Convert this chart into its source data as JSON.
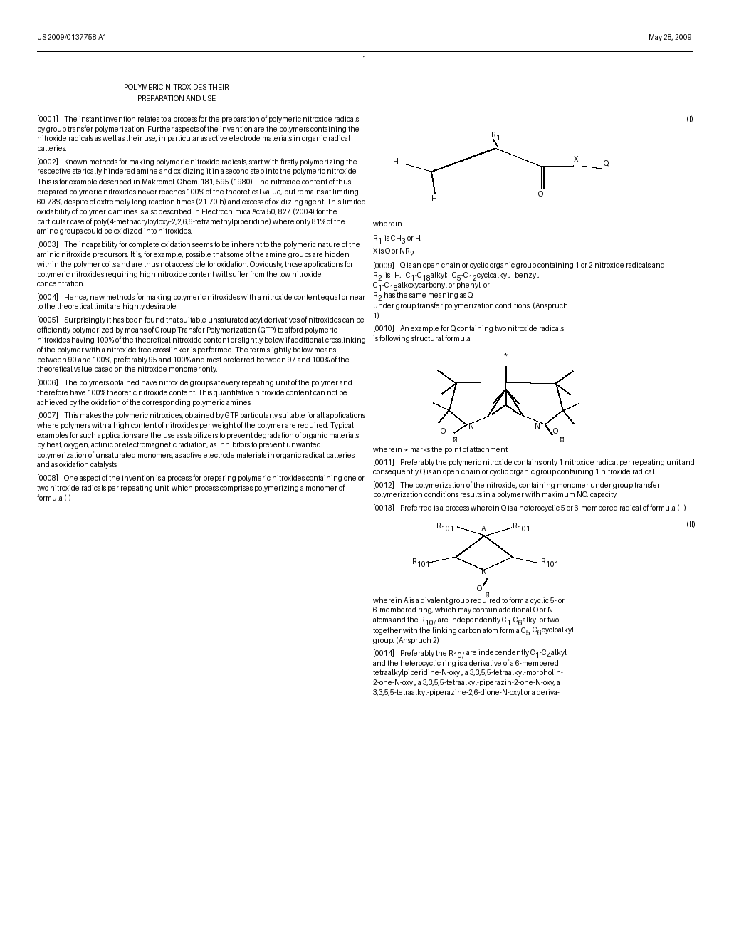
{
  "bg": "#ffffff",
  "header_left": "US 2009/0137758 A1",
  "header_right": "May 28, 2009",
  "page_number": "1",
  "title1": "POLYMERIC NITROXIDES THEIR",
  "title2": "PREPARATION AND USE",
  "formula_I": "(I)",
  "formula_II": "(II)",
  "left_paragraphs": [
    {
      "tag": "[0001]",
      "text": "The instant invention relates to a process for the preparation of polymeric nitroxide radicals by group transfer polymerization. Further aspects of the invention are the polymers containing the nitroxide radicals as well as their use, in particular as active electrode materials in organic radical batteries."
    },
    {
      "tag": "[0002]",
      "text": "Known methods for making polymeric nitroxide radicals, start with firstly polymerizing the respective sterically hindered amine and oxidizing it in a second step into the polymeric nitroxide. This is for example described in Makromol. Chem. 181, 595 (1980). The nitroxide content of thus prepared polymeric nitroxides never reaches 100% of the theoretical value, but remains at limiting 60-73%, despite of extremely long reaction times (21-70 h) and excess of oxidizing agent. This limited oxidability of polymeric amines is also described in Electrochimica Acta 50, 827 (2004) for the particular case of poly(4-methacryloyloxy-2,2,6,6-tetramethylpiperidine) where only 81% of the amine groups could be oxidized into nitroxides."
    },
    {
      "tag": "[0003]",
      "text": "The incapability for complete oxidation seems to be inherent to the polymeric nature of the aminic nitroxide precursors. It is, for example, possible that some of the amine groups are hidden within the polymer coils and are thus not accessible for oxidation. Obviously, those applications for polymeric nitroxides requiring high nitroxide content will suffer from the low nitroxide concentration."
    },
    {
      "tag": "[0004]",
      "text": "Hence, new methods for making polymeric nitroxides with a nitroxide content equal or near to the theoretical limit are highly desirable."
    },
    {
      "tag": "[0005]",
      "text": "Surprisingly it has been found that suitable unsaturated acyl derivatives of nitroxides can be efficiently polymerized by means of Group Transfer Polymerization (GTP) to afford polymeric nitroxides having 100% of the theoretical nitroxide content or slightly below if additional crosslinking of the polymer with a nitroxide free crosslinker is performed. The term slightly below means between 90 and 100%, preferably 95 and 100% and most preferred between 97 and 100% of the theoretical value based on the nitroxide monomer only."
    },
    {
      "tag": "[0006]",
      "text": "The polymers obtained have nitroxide groups at every repeating unit of the polymer and therefore have 100% theoretic nitroxide content. This quantitative nitroxide content can not be achieved by the oxidation of the corresponding polymeric amines."
    },
    {
      "tag": "[0007]",
      "text": "This makes the polymeric nitroxides, obtained by GTP particularly suitable for all applications where polymers with a high content of nitroxides per weight of the polymer are required. Typical examples for such applications are the use as stabilizers to prevent degradation of organic materials by heat, oxygen, actinic or electromagnetic radiation, as inhibitors to prevent unwanted polymerization of unsaturated monomers, as active electrode materials in organic radical batteries and as oxidation catalysts."
    },
    {
      "tag": "[0008]",
      "text": "One aspect of the invention is a process for preparing polymeric nitroxides containing one or two nitroxide radicals per repeating unit, which process comprises polymerizing a monomer of formula (I)"
    }
  ]
}
